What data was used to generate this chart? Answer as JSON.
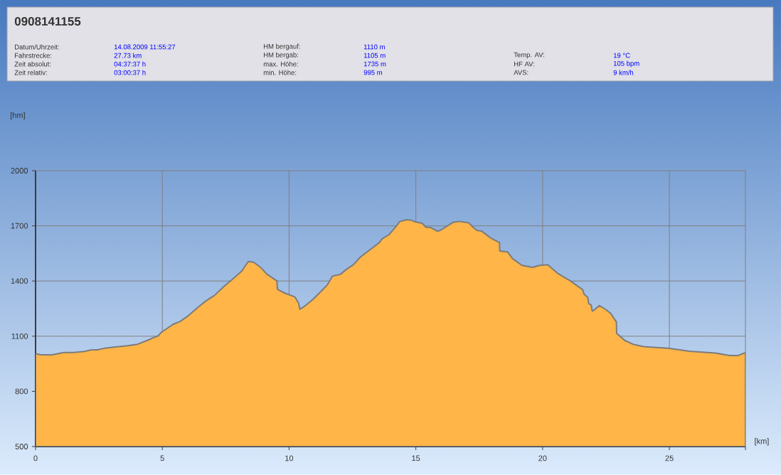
{
  "chart_data": {
    "type": "area",
    "title": "0908141155",
    "xlabel": "[km]",
    "annotations": [
      "Datum/Uhrzeit:",
      "14.08.2009 11:55:27",
      "Fahrstrecke:",
      "27.73 km",
      "Zeit absolut:",
      "04:37:37 h",
      "Zeit relativ:",
      "03:00:37 h",
      "HM bergauf:",
      "1110 m",
      "HM bergab:",
      "1105 m",
      "max. Höhe:",
      "1735 m",
      "min. Höhe:",
      "995 m",
      "Temp. AV:",
      "19 °C",
      "HF AV:",
      "105 bpm",
      "AVS:",
      "9 km/h",
      "[hm]"
    ],
    "x": [
      0,
      0.23,
      0.65,
      1.12,
      1.5,
      1.92,
      2.2,
      2.43,
      2.71,
      3.08,
      3.55,
      4.02,
      4.44,
      4.63,
      4.84,
      4.95,
      5.14,
      5.42,
      5.7,
      6.03,
      6.36,
      6.73,
      7.06,
      7.43,
      7.71,
      8.13,
      8.39,
      8.6,
      8.88,
      9.11,
      9.52,
      9.54,
      9.82,
      10.23,
      10.37,
      10.43,
      10.66,
      10.95,
      11.23,
      11.51,
      11.71,
      12.02,
      12.26,
      12.54,
      12.82,
      13.19,
      13.57,
      13.66,
      13.94,
      14.22,
      14.36,
      14.64,
      14.83,
      14.97,
      15.25,
      15.39,
      15.58,
      15.86,
      16.05,
      16.47,
      16.7,
      17.08,
      17.27,
      17.41,
      17.6,
      17.97,
      18.3,
      18.31,
      18.62,
      18.81,
      19.19,
      19.61,
      19.84,
      20.2,
      20.59,
      21.1,
      21.58,
      21.63,
      21.78,
      21.82,
      21.91,
      21.96,
      22.03,
      22.24,
      22.45,
      22.68,
      22.91,
      22.92,
      23.24,
      23.57,
      23.99,
      24.96,
      25.8,
      26.82,
      27.38,
      27.71,
      28
    ],
    "values": [
      1005,
      999,
      999,
      1011,
      1011,
      1017,
      1026,
      1026,
      1034,
      1040,
      1047,
      1056,
      1079,
      1091,
      1102,
      1120,
      1138,
      1164,
      1180,
      1212,
      1252,
      1293,
      1322,
      1371,
      1403,
      1454,
      1506,
      1502,
      1474,
      1439,
      1400,
      1355,
      1335,
      1313,
      1281,
      1246,
      1268,
      1301,
      1340,
      1379,
      1427,
      1436,
      1463,
      1489,
      1531,
      1570,
      1610,
      1628,
      1652,
      1697,
      1723,
      1733,
      1730,
      1722,
      1714,
      1693,
      1691,
      1670,
      1682,
      1719,
      1724,
      1717,
      1691,
      1675,
      1671,
      1632,
      1609,
      1563,
      1558,
      1522,
      1485,
      1474,
      1484,
      1489,
      1442,
      1400,
      1353,
      1329,
      1311,
      1277,
      1271,
      1236,
      1242,
      1266,
      1249,
      1225,
      1177,
      1116,
      1077,
      1056,
      1043,
      1034,
      1018,
      1008,
      995,
      995,
      1011
    ],
    "color": "#ffb547",
    "xlim": [
      0,
      28
    ],
    "xticks": [
      0,
      5,
      10,
      15,
      20,
      25,
      {
        "value": 28,
        "label": null
      }
    ],
    "ylim": [
      500,
      2000
    ],
    "yticks": [
      500,
      800,
      1100,
      1400,
      1700,
      2000
    ],
    "grid": true
  }
}
